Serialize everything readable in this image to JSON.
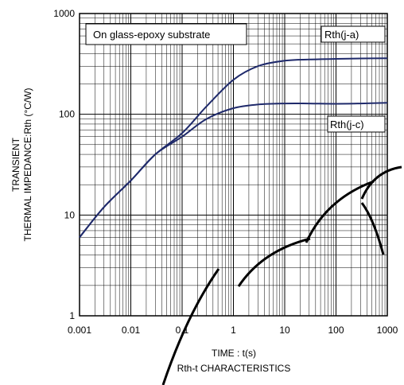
{
  "chart_data": {
    "type": "line",
    "title": "Rth-t CHARACTERISTICS",
    "xlabel": "TIME : t(s)",
    "ylabel_line1": "TRANSIENT",
    "ylabel_line2": "THERMAL IMPEDANCE:Rth (°C/W)",
    "x_scale": "log",
    "y_scale": "log",
    "xlim": [
      0.001,
      1000
    ],
    "ylim": [
      1,
      1000
    ],
    "grid": true,
    "x_ticks": [
      "0.001",
      "0.01",
      "0.1",
      "1",
      "10",
      "100",
      "1000"
    ],
    "y_ticks": [
      "1",
      "10",
      "100",
      "1000"
    ],
    "annotation": "On glass-epoxy substrate",
    "line_color": "#1f2a6b",
    "series": [
      {
        "name": "Rth(j-a)",
        "points": [
          [
            0.001,
            6
          ],
          [
            0.003,
            12
          ],
          [
            0.01,
            22
          ],
          [
            0.03,
            40
          ],
          [
            0.1,
            65
          ],
          [
            0.3,
            120
          ],
          [
            1,
            220
          ],
          [
            3,
            300
          ],
          [
            10,
            340
          ],
          [
            30,
            350
          ],
          [
            100,
            355
          ],
          [
            300,
            358
          ],
          [
            1000,
            360
          ]
        ]
      },
      {
        "name": "Rth(j-c)",
        "points": [
          [
            0.001,
            6
          ],
          [
            0.003,
            12
          ],
          [
            0.01,
            22
          ],
          [
            0.03,
            40
          ],
          [
            0.1,
            60
          ],
          [
            0.3,
            90
          ],
          [
            1,
            115
          ],
          [
            3,
            125
          ],
          [
            10,
            128
          ],
          [
            30,
            128
          ],
          [
            100,
            127
          ],
          [
            300,
            128
          ],
          [
            1000,
            130
          ]
        ]
      }
    ]
  }
}
